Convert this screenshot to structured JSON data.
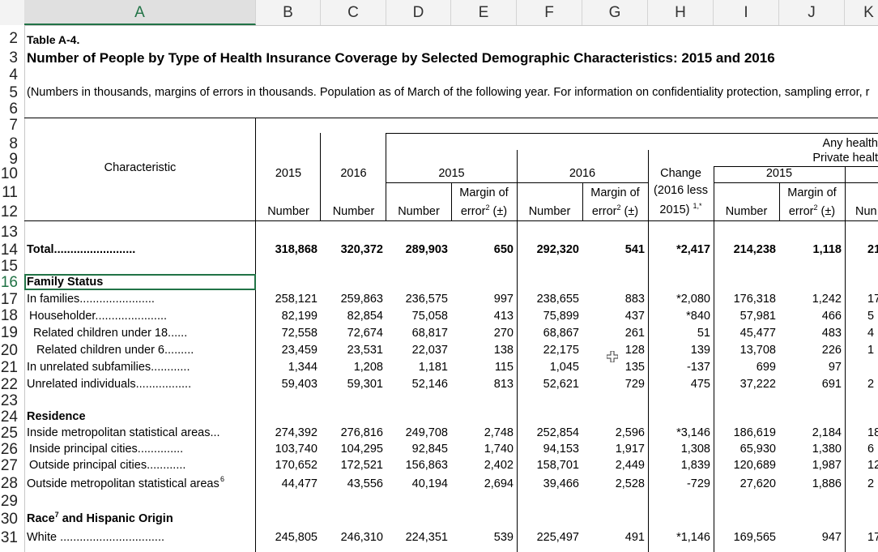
{
  "columns": [
    "A",
    "B",
    "C",
    "D",
    "E",
    "F",
    "G",
    "H",
    "I",
    "J",
    "K"
  ],
  "rows": [
    "2",
    "3",
    "4",
    "5",
    "6",
    "7",
    "8",
    "9",
    "10",
    "11",
    "12",
    "13",
    "14",
    "15",
    "16",
    "17",
    "18",
    "19",
    "20",
    "21",
    "22",
    "23",
    "24",
    "25",
    "26",
    "27",
    "28",
    "29",
    "30",
    "31"
  ],
  "title_small": "Table A-4.",
  "title_main": "Number of People by Type of Health Insurance Coverage by Selected Demographic Characteristics: 2015 and 2016",
  "note": "(Numbers in thousands, margins of errors in thousands.  Population as of March of the following year.  For information on confidentiality protection, sampling error, r",
  "header": {
    "characteristic": "Characteristic",
    "any_health": "Any health",
    "private_health": "Private healt",
    "y2015": "2015",
    "y2016": "2016",
    "d2015": "2015",
    "d2016": "2016",
    "change": "Change",
    "i2015": "2015",
    "margin_of": "Margin of",
    "error_pm": "error",
    "pm": "(±)",
    "change2": "(2016 less",
    "change3": "2015)",
    "change_sup": "1,*",
    "number": "Number",
    "num_trunc": "Nun"
  },
  "data": [
    {
      "label": "Total.........................",
      "b": "318,868",
      "c": "320,372",
      "d": "289,903",
      "e": "650",
      "f": "292,320",
      "g": "541",
      "h": "*2,417",
      "i": "214,238",
      "j": "1,118",
      "k": "21"
    },
    {
      "label": "In families.......................",
      "b": "258,121",
      "c": "259,863",
      "d": "236,575",
      "e": "997",
      "f": "238,655",
      "g": "883",
      "h": "*2,080",
      "i": "176,318",
      "j": "1,242",
      "k": "17"
    },
    {
      "label": "Householder......................",
      "b": "82,199",
      "c": "82,854",
      "d": "75,058",
      "e": "413",
      "f": "75,899",
      "g": "437",
      "h": "*840",
      "i": "57,981",
      "j": "466",
      "k": "5"
    },
    {
      "label": "Related children under  18......",
      "b": "72,558",
      "c": "72,674",
      "d": "68,817",
      "e": "270",
      "f": "68,867",
      "g": "261",
      "h": "51",
      "i": "45,477",
      "j": "483",
      "k": "4"
    },
    {
      "label": "Related children under 6.........",
      "b": "23,459",
      "c": "23,531",
      "d": "22,037",
      "e": "138",
      "f": "22,175",
      "g": "128",
      "h": "139",
      "i": "13,708",
      "j": "226",
      "k": "1"
    },
    {
      "label": "In unrelated subfamilies............",
      "b": "1,344",
      "c": "1,208",
      "d": "1,181",
      "e": "115",
      "f": "1,045",
      "g": "135",
      "h": "-137",
      "i": "699",
      "j": "97",
      "k": ""
    },
    {
      "label": "Unrelated individuals.................",
      "b": "59,403",
      "c": "59,301",
      "d": "52,146",
      "e": "813",
      "f": "52,621",
      "g": "729",
      "h": "475",
      "i": "37,222",
      "j": "691",
      "k": "2"
    },
    {
      "label": "Inside metropolitan statistical areas...",
      "b": "274,392",
      "c": "276,816",
      "d": "249,708",
      "e": "2,748",
      "f": "252,854",
      "g": "2,596",
      "h": "*3,146",
      "i": "186,619",
      "j": "2,184",
      "k": "18"
    },
    {
      "label": "Inside principal cities..............",
      "b": "103,740",
      "c": "104,295",
      "d": "92,845",
      "e": "1,740",
      "f": "94,153",
      "g": "1,917",
      "h": "1,308",
      "i": "65,930",
      "j": "1,380",
      "k": "6"
    },
    {
      "label": "Outside principal cities............",
      "b": "170,652",
      "c": "172,521",
      "d": "156,863",
      "e": "2,402",
      "f": "158,701",
      "g": "2,449",
      "h": "1,839",
      "i": "120,689",
      "j": "1,987",
      "k": "12"
    },
    {
      "label": "Outside metropolitan statistical areas",
      "b": "44,477",
      "c": "43,556",
      "d": "40,194",
      "e": "2,694",
      "f": "39,466",
      "g": "2,528",
      "h": "-729",
      "i": "27,620",
      "j": "1,886",
      "k": "2"
    },
    {
      "label": "White ................................",
      "b": "245,805",
      "c": "246,310",
      "d": "224,351",
      "e": "539",
      "f": "225,497",
      "g": "491",
      "h": "*1,146",
      "i": "169,565",
      "j": "947",
      "k": "17"
    }
  ],
  "sections": {
    "family": "Family Status",
    "residence": "Residence",
    "race": "Race",
    "race2": " and Hispanic Origin"
  },
  "sup6": "6",
  "sup7": "7",
  "sup2": "2"
}
